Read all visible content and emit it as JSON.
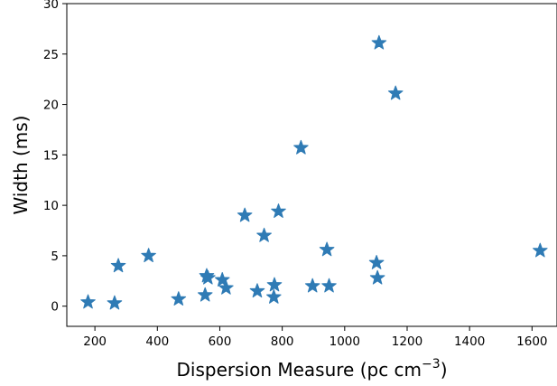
{
  "chart_data": {
    "type": "scatter",
    "xlabel": "Dispersion Measure (pc cm",
    "xlabel_sup": "−3",
    "xlabel_end": ")",
    "ylabel": "Width (ms)",
    "xlim": [
      110,
      1680
    ],
    "ylim": [
      -2,
      30
    ],
    "xticks": [
      200,
      400,
      600,
      800,
      1000,
      1200,
      1400,
      1600
    ],
    "yticks": [
      0,
      5,
      10,
      15,
      20,
      25,
      30
    ],
    "grid": false,
    "marker": "star",
    "color": "#2f7bb5",
    "points": [
      {
        "x": 178,
        "y": 0.4
      },
      {
        "x": 263,
        "y": 0.3
      },
      {
        "x": 275,
        "y": 4.0
      },
      {
        "x": 372,
        "y": 5.0
      },
      {
        "x": 468,
        "y": 0.7
      },
      {
        "x": 553,
        "y": 1.1
      },
      {
        "x": 558,
        "y": 3.0
      },
      {
        "x": 562,
        "y": 2.8
      },
      {
        "x": 608,
        "y": 2.6
      },
      {
        "x": 620,
        "y": 1.8
      },
      {
        "x": 680,
        "y": 9.0
      },
      {
        "x": 720,
        "y": 1.5
      },
      {
        "x": 742,
        "y": 7.0
      },
      {
        "x": 773,
        "y": 0.9
      },
      {
        "x": 775,
        "y": 2.1
      },
      {
        "x": 788,
        "y": 9.4
      },
      {
        "x": 860,
        "y": 15.7
      },
      {
        "x": 897,
        "y": 2.0
      },
      {
        "x": 943,
        "y": 5.6
      },
      {
        "x": 950,
        "y": 2.0
      },
      {
        "x": 1102,
        "y": 4.3
      },
      {
        "x": 1105,
        "y": 2.8
      },
      {
        "x": 1110,
        "y": 26.1
      },
      {
        "x": 1163,
        "y": 21.1
      },
      {
        "x": 1626,
        "y": 5.5
      }
    ]
  }
}
